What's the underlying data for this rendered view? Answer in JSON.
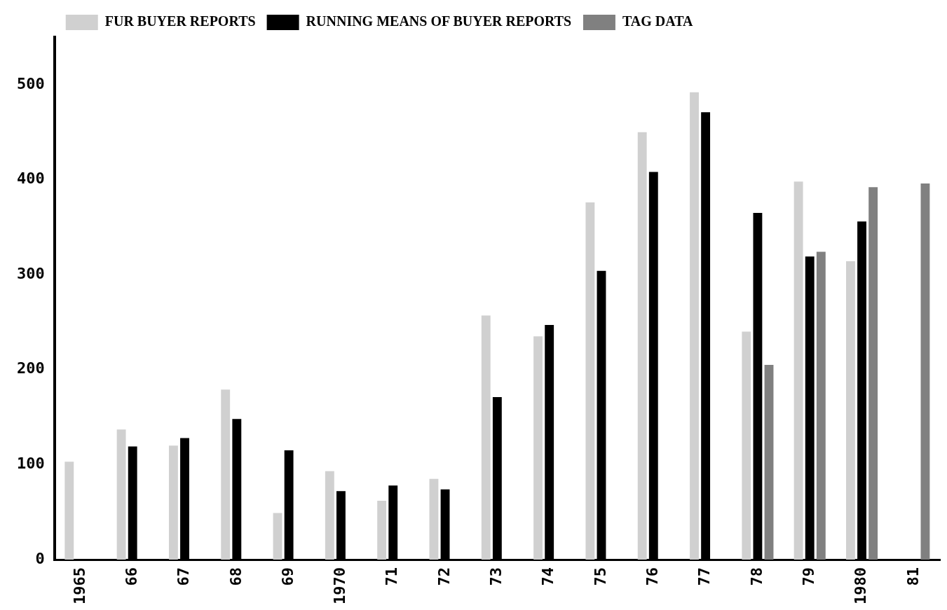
{
  "chart_data": {
    "type": "bar",
    "categories": [
      "1965",
      "66",
      "67",
      "68",
      "69",
      "1970",
      "71",
      "72",
      "73",
      "74",
      "75",
      "76",
      "77",
      "78",
      "79",
      "1980",
      "81"
    ],
    "series": [
      {
        "name": "FUR BUYER REPORTS",
        "color": "#d0d0d0",
        "values": [
          103,
          137,
          120,
          179,
          49,
          93,
          62,
          85,
          257,
          235,
          376,
          450,
          492,
          240,
          398,
          314,
          null
        ]
      },
      {
        "name": "RUNNING MEANS OF BUYER REPORTS",
        "color": "#000000",
        "values": [
          null,
          119,
          128,
          148,
          115,
          72,
          78,
          74,
          171,
          247,
          304,
          408,
          471,
          365,
          319,
          356,
          null
        ]
      },
      {
        "name": "TAG DATA",
        "color": "#808080",
        "values": [
          null,
          null,
          null,
          null,
          null,
          null,
          null,
          null,
          null,
          null,
          null,
          null,
          null,
          205,
          324,
          392,
          396
        ]
      }
    ],
    "ylim": [
      0,
      550
    ],
    "yticks": [
      0,
      100,
      200,
      300,
      400,
      500
    ],
    "grid": false,
    "legend": "top left"
  }
}
